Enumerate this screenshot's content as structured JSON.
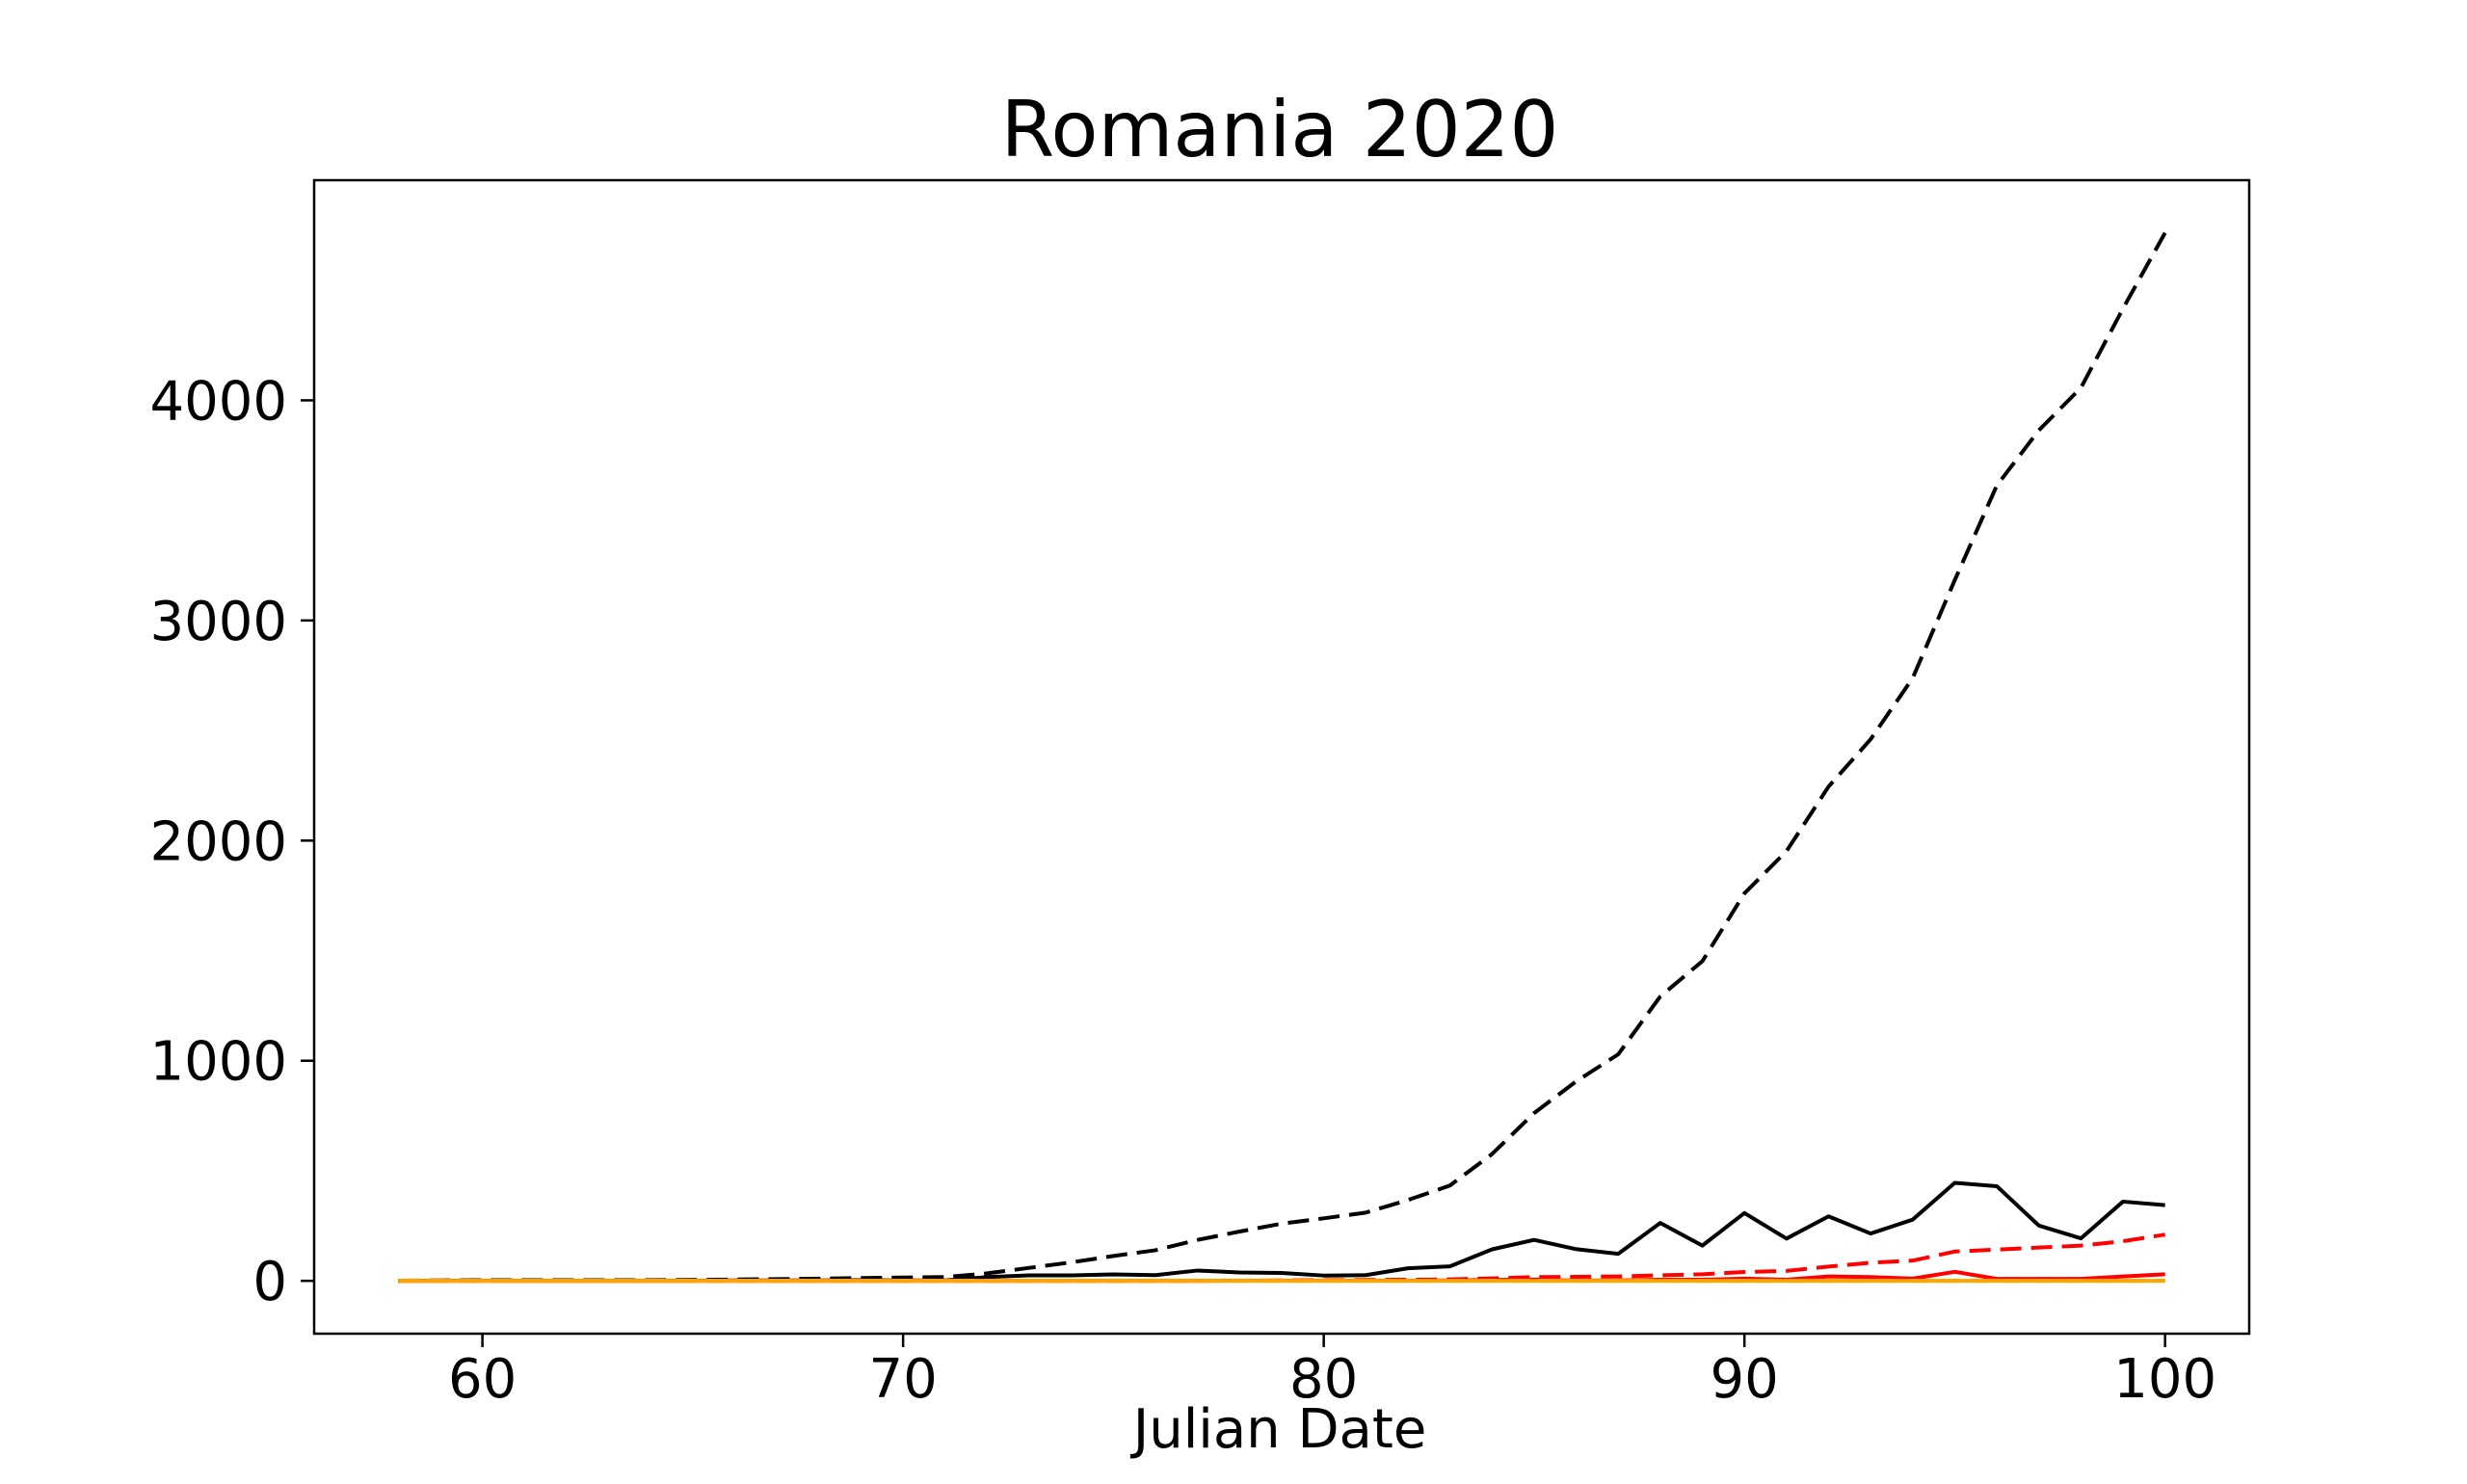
{
  "chart_data": {
    "type": "line",
    "title": "Romania 2020",
    "xlabel": "Julian Date",
    "ylabel": "",
    "xlim": [
      56,
      102
    ],
    "ylim": [
      -240,
      5000
    ],
    "xticks": [
      60,
      70,
      80,
      90,
      100
    ],
    "yticks": [
      0,
      1000,
      2000,
      3000,
      4000
    ],
    "grid": false,
    "legend": "none",
    "x": [
      58,
      59,
      60,
      61,
      62,
      63,
      64,
      65,
      66,
      67,
      68,
      69,
      70,
      71,
      72,
      73,
      74,
      75,
      76,
      77,
      78,
      79,
      80,
      81,
      82,
      83,
      84,
      85,
      86,
      87,
      88,
      89,
      90,
      91,
      92,
      93,
      94,
      95,
      96,
      97,
      98,
      99,
      100
    ],
    "series": [
      {
        "color": "#000000",
        "dash": "dashed",
        "values": [
          1,
          2,
          3,
          3,
          3,
          3,
          3,
          4,
          6,
          8,
          10,
          13,
          15,
          17,
          34,
          59,
          84,
          113,
          139,
          186,
          224,
          260,
          284,
          310,
          367,
          433,
          576,
          762,
          906,
          1029,
          1292,
          1452,
          1760,
          1952,
          2245,
          2460,
          2738,
          3183,
          3613,
          3864,
          4057,
          4417,
          4761
        ]
      },
      {
        "color": "#000000",
        "dash": "solid",
        "values": [
          0,
          1,
          1,
          0,
          0,
          0,
          0,
          1,
          2,
          2,
          2,
          3,
          2,
          2,
          17,
          25,
          25,
          29,
          26,
          47,
          38,
          36,
          24,
          26,
          57,
          66,
          143,
          186,
          144,
          123,
          263,
          160,
          308,
          192,
          293,
          215,
          278,
          445,
          430,
          251,
          193,
          360,
          344
        ]
      },
      {
        "color": "#ff0000",
        "dash": "dashed",
        "values": [
          0,
          0,
          0,
          0,
          0,
          0,
          0,
          0,
          0,
          0,
          0,
          0,
          0,
          0,
          0,
          0,
          0,
          0,
          0,
          0,
          1,
          2,
          3,
          4,
          5,
          7,
          11,
          17,
          18,
          20,
          25,
          30,
          40,
          45,
          65,
          82,
          92,
          133,
          142,
          151,
          160,
          180,
          210
        ]
      },
      {
        "color": "#ff0000",
        "dash": "solid",
        "values": [
          0,
          0,
          0,
          0,
          0,
          0,
          0,
          0,
          0,
          0,
          0,
          0,
          0,
          0,
          0,
          0,
          0,
          0,
          0,
          0,
          1,
          1,
          1,
          1,
          1,
          2,
          4,
          6,
          1,
          2,
          5,
          5,
          10,
          5,
          20,
          17,
          10,
          41,
          9,
          9,
          9,
          20,
          30
        ]
      },
      {
        "color": "#ffa500",
        "dash": "dashed",
        "values": [
          0,
          0,
          0,
          0,
          0,
          0,
          0,
          0,
          0,
          0,
          0,
          0,
          0,
          0,
          0,
          0,
          0,
          0,
          0,
          0,
          0,
          0,
          0,
          0,
          0,
          0,
          0,
          0,
          0,
          0,
          0,
          0,
          0,
          0,
          0,
          0,
          0,
          0,
          0,
          0,
          0,
          0,
          0
        ]
      },
      {
        "color": "#ffa500",
        "dash": "solid",
        "values": [
          0,
          0,
          0,
          0,
          0,
          0,
          0,
          0,
          0,
          0,
          0,
          0,
          0,
          0,
          0,
          0,
          0,
          0,
          0,
          0,
          0,
          0,
          0,
          0,
          0,
          0,
          0,
          0,
          0,
          0,
          0,
          0,
          0,
          0,
          0,
          0,
          0,
          0,
          0,
          0,
          0,
          0,
          0
        ]
      }
    ]
  }
}
